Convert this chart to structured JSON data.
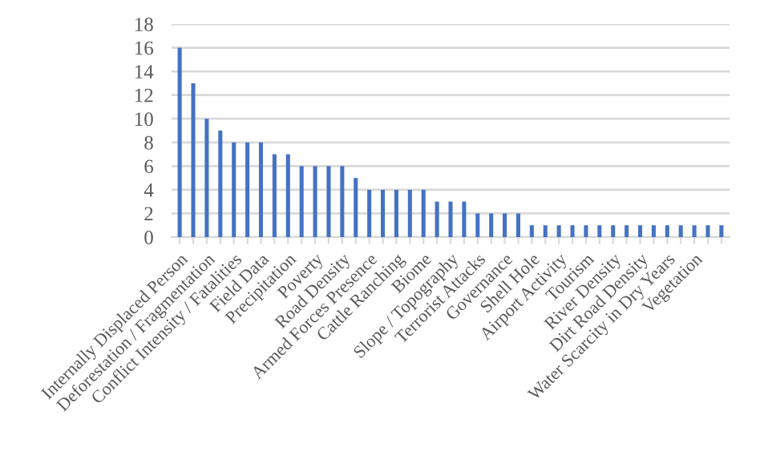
{
  "chart_data": {
    "type": "bar",
    "categories": [
      "Internally Displaced Person",
      null,
      "Deforestation / Fragmentation",
      null,
      "Conflict Intensity / Fatalities",
      null,
      "Field Data",
      null,
      "Precipitation",
      null,
      "Poverty",
      null,
      "Road Density",
      null,
      "Armed Forces Presence",
      null,
      "Cattle Ranching",
      null,
      "Biome",
      null,
      "Slope / Topography",
      null,
      "Terrorist Attacks",
      null,
      "Governance",
      null,
      "Shell Hole",
      null,
      "Airport Activity",
      null,
      "Tourism",
      null,
      "River Density",
      null,
      "Dirt Road Density",
      null,
      "Water Scarcity in Dry Years",
      null,
      "Vegetation",
      null,
      null
    ],
    "values": [
      16,
      13,
      10,
      9,
      8,
      8,
      8,
      7,
      7,
      6,
      6,
      6,
      6,
      5,
      4,
      4,
      4,
      4,
      4,
      3,
      3,
      3,
      2,
      2,
      2,
      2,
      1,
      1,
      1,
      1,
      1,
      1,
      1,
      1,
      1,
      1,
      1,
      1,
      1,
      1,
      1
    ],
    "color": "#4472c4",
    "ylim": [
      0,
      18
    ],
    "yticks": [
      0,
      2,
      4,
      6,
      8,
      10,
      12,
      14,
      16,
      18
    ],
    "grid": "y"
  }
}
